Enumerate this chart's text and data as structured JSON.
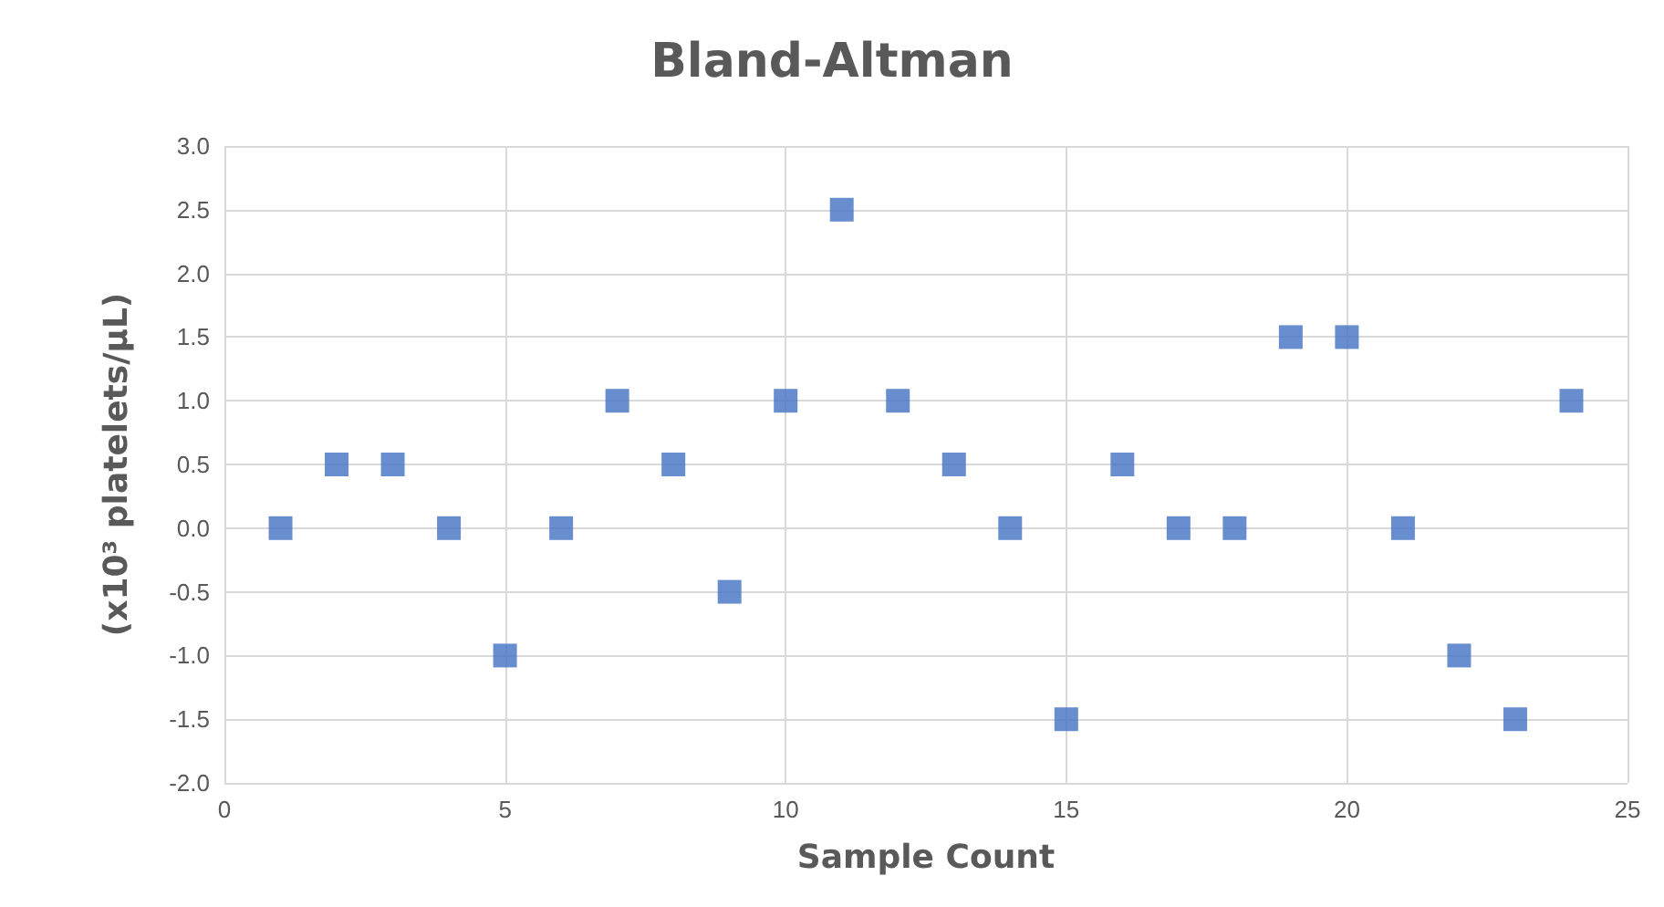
{
  "chart_data": {
    "type": "scatter",
    "title": "Bland-Altman",
    "xlabel": "Sample Count",
    "ylabel": "(x10³ platelets/µL)",
    "x": [
      1,
      2,
      3,
      4,
      5,
      6,
      7,
      8,
      9,
      10,
      11,
      12,
      13,
      14,
      15,
      16,
      17,
      18,
      19,
      20,
      21,
      22,
      23,
      24
    ],
    "series": [
      {
        "color": "#4472c4",
        "values": [
          0,
          0.5,
          0.5,
          0,
          -1,
          0,
          1,
          0.5,
          -0.5,
          1,
          2.5,
          1,
          0.5,
          0,
          -1.5,
          0.5,
          0,
          0,
          1.5,
          1.5,
          0,
          -1,
          -1.5,
          1
        ]
      }
    ],
    "xlim": [
      0,
      25
    ],
    "xticks": [
      0,
      5,
      10,
      15,
      20,
      25
    ],
    "ylim": [
      -2,
      3
    ],
    "yticks": [
      {
        "value": -2,
        "label": "-2.0"
      },
      {
        "value": -1.5,
        "label": "-1.5"
      },
      {
        "value": -1,
        "label": "-1.0"
      },
      {
        "value": -0.5,
        "label": "-0.5"
      },
      {
        "value": 0,
        "label": "0.0"
      },
      {
        "value": 0.5,
        "label": "0.5"
      },
      {
        "value": 1,
        "label": "1.0"
      },
      {
        "value": 1.5,
        "label": "1.5"
      },
      {
        "value": 2,
        "label": "2.0"
      },
      {
        "value": 2.5,
        "label": "2.5"
      },
      {
        "value": 3,
        "label": "3.0"
      }
    ],
    "grid": true,
    "marker": "square"
  }
}
